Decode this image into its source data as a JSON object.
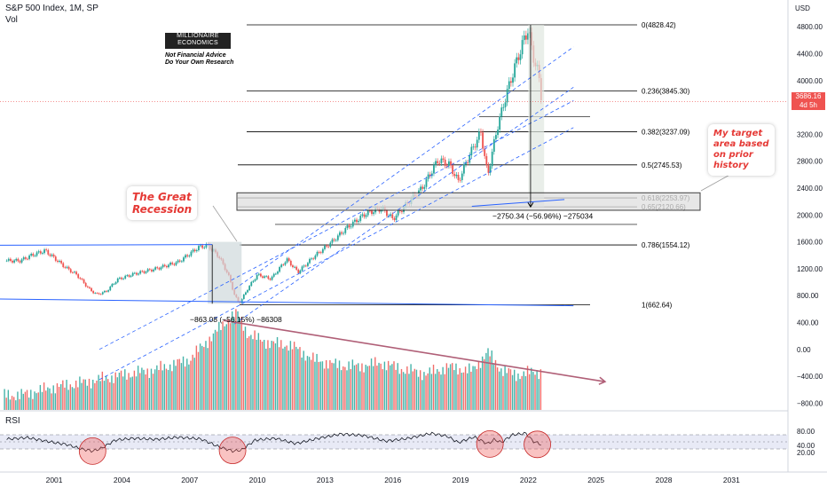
{
  "header": {
    "title": "S&P 500 Index, 1M, SP",
    "vol_label": "Vol",
    "rsi_label": "RSI"
  },
  "branding": {
    "line1": "MILLIONAIRE",
    "line2": "ECONOMICS",
    "disclaimer1": "Not Financial Advice",
    "disclaimer2": "Do Your Own Research"
  },
  "annotations": {
    "great_recession_line1": "The Great",
    "great_recession_line2": "Recession",
    "target_line1": "My target",
    "target_line2": "area based",
    "target_line3": "on prior",
    "target_line4": "history",
    "drop_2022": "−2750.34 (−56.96%) −275034",
    "drop_2008": "−863.08 (−56.15%) −86308"
  },
  "price_tag": {
    "value": "3686.16",
    "countdown": "4d 5h"
  },
  "axis": {
    "currency": "USD"
  },
  "colors": {
    "up": "#26a69a",
    "down": "#ef5350",
    "annotation": "#e53935",
    "channel": "#2962ff",
    "fib_line": "#000000",
    "rsi_line": "#131722",
    "rsi_band": "#e8eaf6"
  },
  "chart_data": [
    {
      "type": "candlestick",
      "title": "S&P 500 Index, 1M, SP",
      "ylabel": "USD",
      "y_ticks": [
        "4800.00",
        "4400.00",
        "4000.00",
        "3600.00",
        "3200.00",
        "2800.00",
        "2400.00",
        "2000.00",
        "1600.00",
        "1200.00",
        "800.00",
        "400.00",
        "0.00",
        "−400.00",
        "−800.00"
      ],
      "x_ticks": [
        "2001",
        "2004",
        "2007",
        "2010",
        "2013",
        "2016",
        "2019",
        "2022",
        "2025",
        "2028",
        "2031"
      ],
      "ylim": [
        -900,
        5000
      ],
      "fib_levels": [
        {
          "label": "0(4828.42)",
          "value": 4828.42
        },
        {
          "label": "0.236(3845.30)",
          "value": 3845.3
        },
        {
          "label": "0.382(3237.09)",
          "value": 3237.09
        },
        {
          "label": "0.5(2745.53)",
          "value": 2745.53
        },
        {
          "label": "0.618(2253.97)",
          "value": 2253.97
        },
        {
          "label": "0.65(2120.66)",
          "value": 2120.66
        },
        {
          "label": "0.786(1554.12)",
          "value": 1554.12
        },
        {
          "label": "1(662.64)",
          "value": 662.64
        }
      ],
      "monthly_close": [
        {
          "x": 1999.5,
          "y": 1320
        },
        {
          "x": 2000.0,
          "y": 1400
        },
        {
          "x": 2000.6,
          "y": 1470
        },
        {
          "x": 2001.0,
          "y": 1360
        },
        {
          "x": 2001.5,
          "y": 1220
        },
        {
          "x": 2002.0,
          "y": 1110
        },
        {
          "x": 2002.6,
          "y": 880
        },
        {
          "x": 2002.9,
          "y": 820
        },
        {
          "x": 2003.3,
          "y": 860
        },
        {
          "x": 2003.8,
          "y": 1040
        },
        {
          "x": 2004.5,
          "y": 1120
        },
        {
          "x": 2005.5,
          "y": 1200
        },
        {
          "x": 2006.5,
          "y": 1300
        },
        {
          "x": 2007.4,
          "y": 1520
        },
        {
          "x": 2007.8,
          "y": 1550
        },
        {
          "x": 2008.3,
          "y": 1380
        },
        {
          "x": 2008.7,
          "y": 1120
        },
        {
          "x": 2009.0,
          "y": 800
        },
        {
          "x": 2009.2,
          "y": 680
        },
        {
          "x": 2009.6,
          "y": 920
        },
        {
          "x": 2010.0,
          "y": 1110
        },
        {
          "x": 2010.6,
          "y": 1050
        },
        {
          "x": 2011.3,
          "y": 1340
        },
        {
          "x": 2011.8,
          "y": 1150
        },
        {
          "x": 2012.5,
          "y": 1380
        },
        {
          "x": 2013.3,
          "y": 1600
        },
        {
          "x": 2014.0,
          "y": 1820
        },
        {
          "x": 2014.8,
          "y": 2020
        },
        {
          "x": 2015.5,
          "y": 2100
        },
        {
          "x": 2016.0,
          "y": 1940
        },
        {
          "x": 2016.6,
          "y": 2160
        },
        {
          "x": 2017.3,
          "y": 2400
        },
        {
          "x": 2018.0,
          "y": 2820
        },
        {
          "x": 2018.5,
          "y": 2750
        },
        {
          "x": 2018.9,
          "y": 2500
        },
        {
          "x": 2019.4,
          "y": 2900
        },
        {
          "x": 2019.9,
          "y": 3230
        },
        {
          "x": 2020.2,
          "y": 2580
        },
        {
          "x": 2020.6,
          "y": 3270
        },
        {
          "x": 2021.0,
          "y": 3760
        },
        {
          "x": 2021.4,
          "y": 4200
        },
        {
          "x": 2021.8,
          "y": 4600
        },
        {
          "x": 2022.0,
          "y": 4770
        },
        {
          "x": 2022.2,
          "y": 4380
        },
        {
          "x": 2022.45,
          "y": 4100
        },
        {
          "x": 2022.6,
          "y": 3686
        }
      ],
      "volume": [
        {
          "x": 1999.5,
          "y": -680
        },
        {
          "x": 2001.0,
          "y": -560
        },
        {
          "x": 2002.5,
          "y": -480
        },
        {
          "x": 2004.0,
          "y": -380
        },
        {
          "x": 2005.5,
          "y": -300
        },
        {
          "x": 2007.0,
          "y": -150
        },
        {
          "x": 2008.0,
          "y": 200
        },
        {
          "x": 2008.8,
          "y": 480
        },
        {
          "x": 2009.1,
          "y": 550
        },
        {
          "x": 2009.6,
          "y": 220
        },
        {
          "x": 2010.5,
          "y": 100
        },
        {
          "x": 2011.5,
          "y": 60
        },
        {
          "x": 2012.5,
          "y": -150
        },
        {
          "x": 2013.5,
          "y": -230
        },
        {
          "x": 2014.5,
          "y": -250
        },
        {
          "x": 2015.5,
          "y": -200
        },
        {
          "x": 2016.5,
          "y": -300
        },
        {
          "x": 2017.5,
          "y": -360
        },
        {
          "x": 2018.5,
          "y": -260
        },
        {
          "x": 2019.5,
          "y": -320
        },
        {
          "x": 2020.2,
          "y": -40
        },
        {
          "x": 2020.8,
          "y": -300
        },
        {
          "x": 2021.5,
          "y": -380
        },
        {
          "x": 2022.3,
          "y": -330
        }
      ],
      "volume_trendline": [
        {
          "x": 2008.5,
          "y": 430
        },
        {
          "x": 2025.4,
          "y": -480
        }
      ]
    },
    {
      "type": "line",
      "title": "RSI",
      "y_ticks": [
        "80.00",
        "40.00",
        "20.00"
      ],
      "bands": [
        70,
        30
      ],
      "values": [
        {
          "x": 1999.0,
          "y": 58
        },
        {
          "x": 1999.8,
          "y": 62
        },
        {
          "x": 2000.4,
          "y": 55
        },
        {
          "x": 2001.0,
          "y": 48
        },
        {
          "x": 2001.6,
          "y": 42
        },
        {
          "x": 2002.2,
          "y": 30
        },
        {
          "x": 2002.7,
          "y": 24
        },
        {
          "x": 2003.1,
          "y": 32
        },
        {
          "x": 2003.7,
          "y": 55
        },
        {
          "x": 2004.5,
          "y": 60
        },
        {
          "x": 2005.5,
          "y": 57
        },
        {
          "x": 2006.5,
          "y": 63
        },
        {
          "x": 2007.5,
          "y": 58
        },
        {
          "x": 2008.3,
          "y": 36
        },
        {
          "x": 2008.9,
          "y": 24
        },
        {
          "x": 2009.3,
          "y": 27
        },
        {
          "x": 2009.9,
          "y": 55
        },
        {
          "x": 2010.8,
          "y": 60
        },
        {
          "x": 2011.7,
          "y": 45
        },
        {
          "x": 2012.7,
          "y": 60
        },
        {
          "x": 2013.7,
          "y": 72
        },
        {
          "x": 2014.7,
          "y": 68
        },
        {
          "x": 2015.7,
          "y": 52
        },
        {
          "x": 2016.7,
          "y": 60
        },
        {
          "x": 2017.7,
          "y": 74
        },
        {
          "x": 2018.4,
          "y": 66
        },
        {
          "x": 2018.9,
          "y": 48
        },
        {
          "x": 2019.6,
          "y": 64
        },
        {
          "x": 2020.2,
          "y": 44
        },
        {
          "x": 2020.5,
          "y": 57
        },
        {
          "x": 2020.8,
          "y": 48
        },
        {
          "x": 2021.3,
          "y": 70
        },
        {
          "x": 2021.9,
          "y": 74
        },
        {
          "x": 2022.2,
          "y": 52
        },
        {
          "x": 2022.6,
          "y": 42
        }
      ]
    }
  ]
}
